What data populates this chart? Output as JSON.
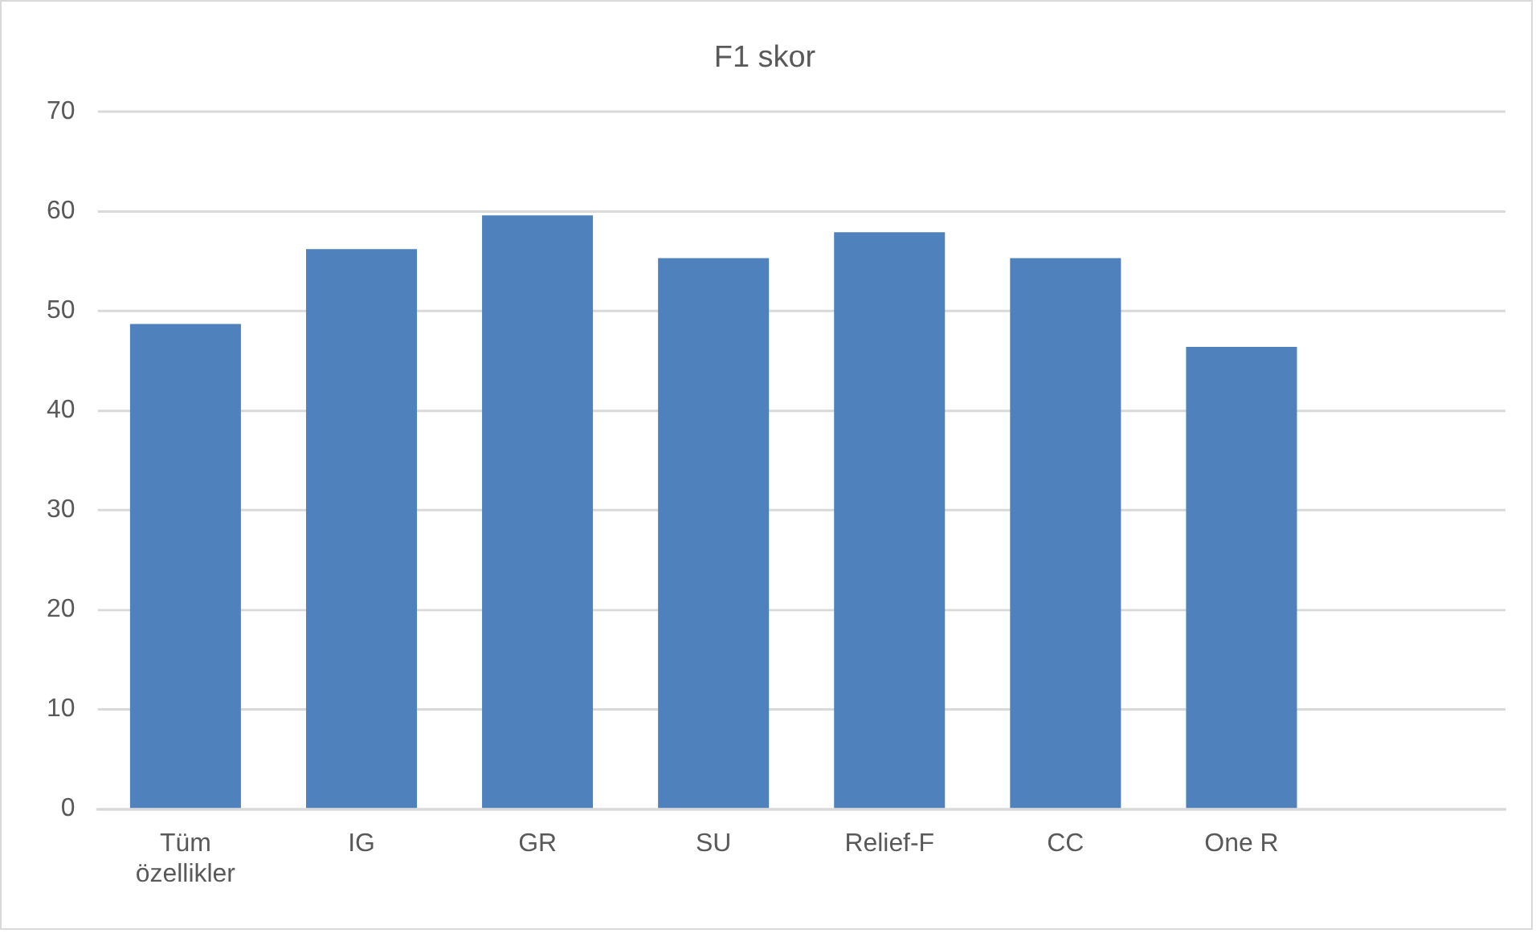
{
  "chart_data": {
    "type": "bar",
    "title": "F1 skor",
    "categories": [
      "Tüm özellikler",
      "IG",
      "GR",
      "SU",
      "Relief-F",
      "CC",
      "One R",
      null
    ],
    "values": [
      48.7,
      56.2,
      59.6,
      55.3,
      57.9,
      55.3,
      46.4,
      null
    ],
    "color": "#4f81bd",
    "ylim": [
      0,
      70
    ],
    "yticks": [
      0,
      10,
      20,
      30,
      40,
      50,
      60,
      70
    ],
    "grid": "y",
    "legend": false
  }
}
